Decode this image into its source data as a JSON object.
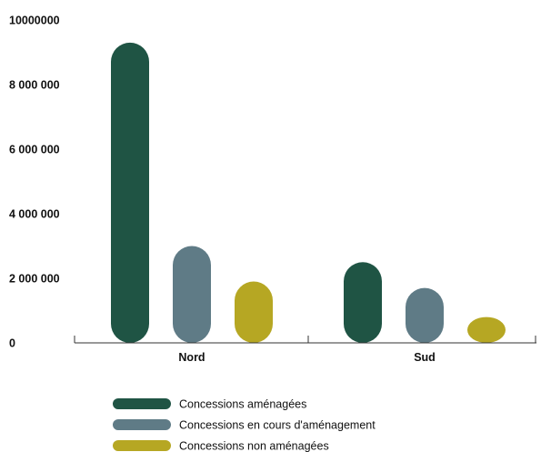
{
  "chart_data": {
    "type": "bar",
    "title": "",
    "xlabel": "",
    "ylabel": "",
    "categories": [
      "Nord",
      "Sud"
    ],
    "ylim": [
      0,
      10000000
    ],
    "y_ticks": [
      {
        "value": 0,
        "label": "0"
      },
      {
        "value": 2000000,
        "label": "2 000 000"
      },
      {
        "value": 4000000,
        "label": "4 000 000"
      },
      {
        "value": 6000000,
        "label": "6 000 000"
      },
      {
        "value": 8000000,
        "label": "8 000 000"
      },
      {
        "value": 10000000,
        "label": "10000000"
      }
    ],
    "series": [
      {
        "name": "Concessions aménagées",
        "color": "#1f5444",
        "values": [
          9300000,
          2500000
        ]
      },
      {
        "name": "Concessions en cours d'aménagement",
        "color": "#5f7b86",
        "values": [
          3000000,
          1700000
        ]
      },
      {
        "name": "Concessions non aménagées",
        "color": "#b6a723",
        "values": [
          1900000,
          800000
        ]
      }
    ],
    "grid": false,
    "legend_position": "bottom-left"
  }
}
